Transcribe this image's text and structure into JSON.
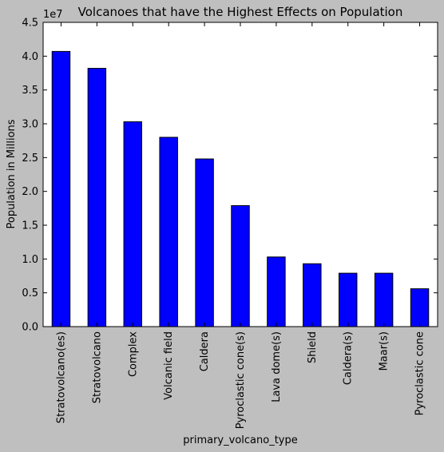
{
  "chart_data": {
    "type": "bar",
    "title": "Volcanoes that have the Highest Effects on Population",
    "xlabel": "primary_volcano_type",
    "ylabel": "Population in Millions",
    "scale_label": "1e7",
    "categories": [
      "Stratovolcano(es)",
      "Stratovolcano",
      "Complex",
      "Volcanic field",
      "Caldera",
      "Pyroclastic cone(s)",
      "Lava dome(s)",
      "Shield",
      "Caldera(s)",
      "Maar(s)",
      "Pyroclastic cone"
    ],
    "values": [
      40700000,
      38200000,
      30300000,
      28000000,
      24800000,
      17900000,
      10300000,
      9300000,
      7900000,
      7900000,
      5600000
    ],
    "ylim": [
      0,
      45000000
    ],
    "yticks": [
      0,
      5000000,
      10000000,
      15000000,
      20000000,
      25000000,
      30000000,
      35000000,
      40000000,
      45000000
    ],
    "ytick_labels": [
      "0.0",
      "0.5",
      "1.0",
      "1.5",
      "2.0",
      "2.5",
      "3.0",
      "3.5",
      "4.0",
      "4.5"
    ],
    "grid": false,
    "legend": "none",
    "colors": {
      "bar": "#0000ff",
      "edge": "#000000",
      "plot_bg": "#ffffff",
      "figure_bg": "#bfbfbf"
    }
  }
}
